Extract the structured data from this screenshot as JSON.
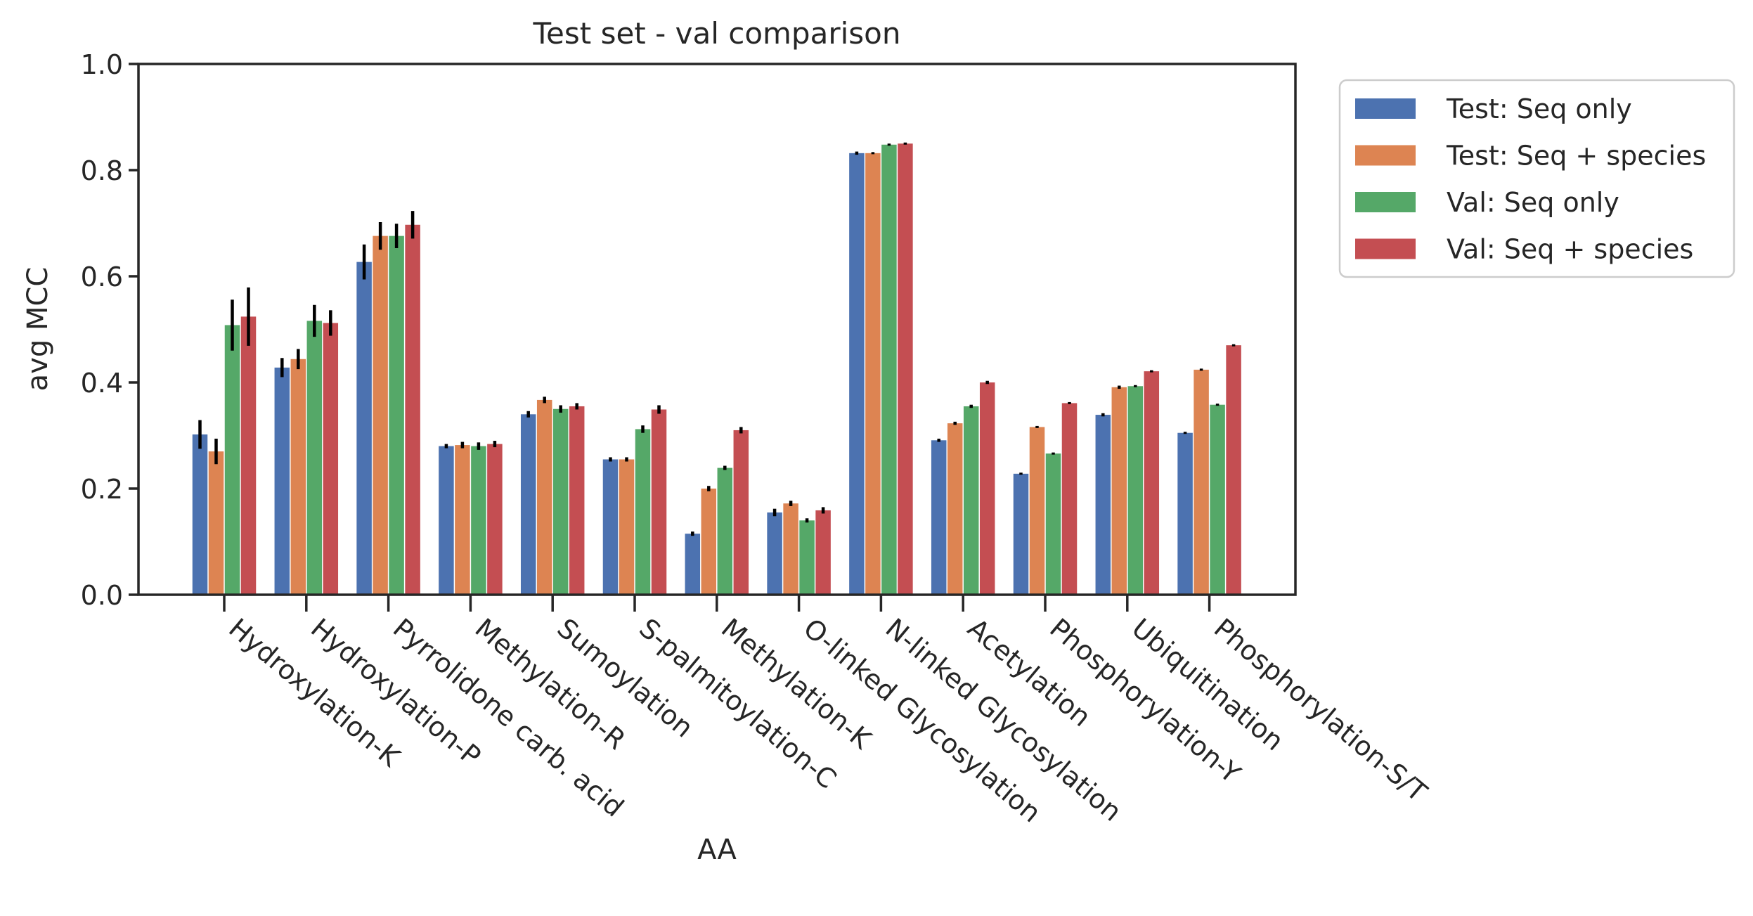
{
  "colors": {
    "series": [
      "#4c72b0",
      "#dd8452",
      "#55a868",
      "#c44e52"
    ],
    "errorbar": "#000000",
    "axis": "#262626"
  },
  "chart_data": {
    "type": "bar",
    "title": "Test set - val comparison",
    "xlabel": "AA",
    "ylabel": "avg MCC",
    "ylim": [
      0,
      1.0
    ],
    "yticks": [
      "0.0",
      "0.2",
      "0.4",
      "0.6",
      "0.8",
      "1.0"
    ],
    "grid": false,
    "legend_position": "outside-top-right",
    "categories": [
      "Hydroxylation-K",
      "Hydroxylation-P",
      "Pyrrolidone carb. acid",
      "Methylation-R",
      "Sumoylation",
      "S-palmitoylation-C",
      "Methylation-K",
      "O-linked Glycosylation",
      "N-linked Glycosylation",
      "Acetylation",
      "Phosphorylation-Y",
      "Ubiquitination",
      "Phosphorylation-S/T"
    ],
    "series": [
      {
        "name": "Test: Seq only",
        "values": [
          0.302,
          0.428,
          0.627,
          0.28,
          0.34,
          0.255,
          0.115,
          0.155,
          0.832,
          0.291,
          0.228,
          0.339,
          0.305
        ],
        "errors": [
          0.027,
          0.018,
          0.033,
          0.004,
          0.006,
          0.004,
          0.004,
          0.007,
          0.003,
          0.003,
          0.002,
          0.003,
          0.002
        ]
      },
      {
        "name": "Test: Seq + species",
        "values": [
          0.27,
          0.444,
          0.676,
          0.282,
          0.367,
          0.255,
          0.2,
          0.172,
          0.832,
          0.323,
          0.316,
          0.391,
          0.424
        ],
        "errors": [
          0.024,
          0.019,
          0.026,
          0.006,
          0.006,
          0.004,
          0.005,
          0.005,
          0.002,
          0.003,
          0.002,
          0.003,
          0.002
        ]
      },
      {
        "name": "Val: Seq only",
        "values": [
          0.508,
          0.516,
          0.676,
          0.28,
          0.35,
          0.312,
          0.239,
          0.14,
          0.848,
          0.355,
          0.266,
          0.393,
          0.358
        ],
        "errors": [
          0.048,
          0.03,
          0.023,
          0.007,
          0.007,
          0.007,
          0.004,
          0.004,
          0.002,
          0.003,
          0.002,
          0.002,
          0.002
        ]
      },
      {
        "name": "Val: Seq + species",
        "values": [
          0.524,
          0.512,
          0.697,
          0.284,
          0.355,
          0.349,
          0.31,
          0.159,
          0.85,
          0.4,
          0.361,
          0.421,
          0.47
        ],
        "errors": [
          0.055,
          0.024,
          0.026,
          0.006,
          0.006,
          0.008,
          0.006,
          0.006,
          0.002,
          0.003,
          0.002,
          0.002,
          0.002
        ]
      }
    ]
  }
}
